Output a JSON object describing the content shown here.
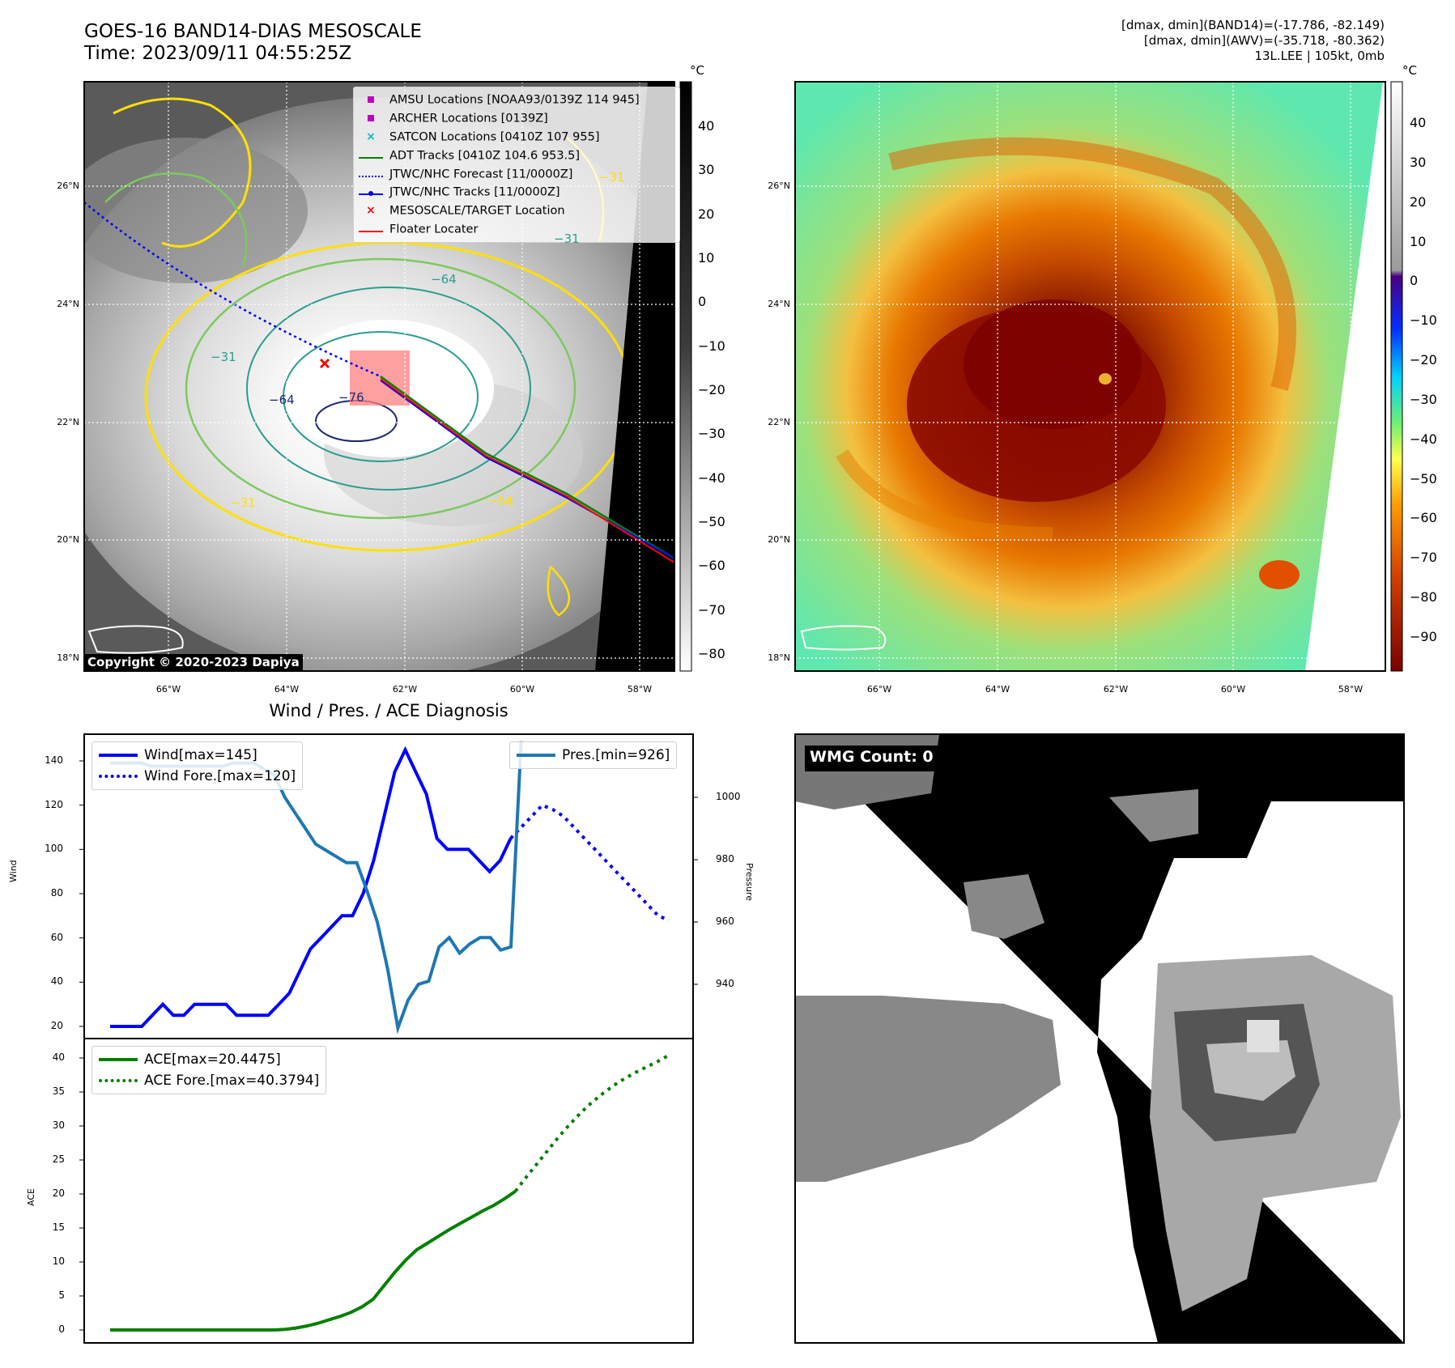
{
  "header": {
    "title_line1": "GOES-16 BAND14-DIAS MESOSCALE",
    "title_line2": "Time: 2023/09/11 04:55:25Z",
    "info_line1": "[dmax, dmin](BAND14)=(-17.786, -82.149)",
    "info_line2": "[dmax, dmin](AWV)=(-35.718, -80.362)",
    "info_line3": "13L.LEE | 105kt, 0mb"
  },
  "map_left": {
    "lat_labels": [
      "26°N",
      "24°N",
      "22°N",
      "20°N",
      "18°N"
    ],
    "lon_labels": [
      "66°W",
      "64°W",
      "62°W",
      "60°W",
      "58°W"
    ],
    "copyright": "Copyright © 2020-2023 Dapiya",
    "colorbar_unit": "°C",
    "colorbar_ticks": [
      "40",
      "30",
      "20",
      "10",
      "0",
      "−10",
      "−20",
      "−30",
      "−40",
      "−50",
      "−60",
      "−70",
      "−80"
    ],
    "contour_labels": [
      "−64",
      "−76",
      "−31",
      "−31",
      "−64",
      "−31",
      "−31",
      "−64"
    ],
    "legend": [
      {
        "label": "AMSU Locations [NOAA93/0139Z 114 945]",
        "color": "#c000c0",
        "marker": "square"
      },
      {
        "label": "ARCHER Locations [0139Z]",
        "color": "#c000c0",
        "marker": "square"
      },
      {
        "label": "SATCON Locations [0410Z 107 955]",
        "color": "#00c0c0",
        "marker": "x"
      },
      {
        "label": "ADT Tracks [0410Z 104.6 953.5]",
        "color": "#008000",
        "marker": "line"
      },
      {
        "label": "JTWC/NHC Forecast [11/0000Z]",
        "color": "#0000ff",
        "marker": "dotted"
      },
      {
        "label": "JTWC/NHC Tracks [11/0000Z]",
        "color": "#0000ff",
        "marker": "line-dot"
      },
      {
        "label": "MESOSCALE/TARGET Location",
        "color": "#ff0000",
        "marker": "x"
      },
      {
        "label": "Floater Locater",
        "color": "#ff0000",
        "marker": "line"
      }
    ]
  },
  "map_right": {
    "lat_labels": [
      "26°N",
      "24°N",
      "22°N",
      "20°N",
      "18°N"
    ],
    "lon_labels": [
      "66°W",
      "64°W",
      "62°W",
      "60°W",
      "58°W"
    ],
    "colorbar_unit": "°C",
    "colorbar_ticks": [
      "40",
      "30",
      "20",
      "10",
      "0",
      "−10",
      "−20",
      "−30",
      "−40",
      "−50",
      "−60",
      "−70",
      "−80",
      "−90"
    ]
  },
  "diagnosis": {
    "title": "Wind / Pres. / ACE Diagnosis",
    "wind_ylabel": "Wind",
    "pres_ylabel": "Pressure",
    "ace_ylabel": "ACE",
    "wind_legend": [
      "Wind[max=145]",
      "Wind Fore.[max=120]"
    ],
    "pres_legend": [
      "Pres.[min=926]"
    ],
    "ace_legend": [
      "ACE[max=20.4475]",
      "ACE Fore.[max=40.3794]"
    ],
    "wind_ticks": [
      "140",
      "120",
      "100",
      "80",
      "60",
      "40",
      "20"
    ],
    "pres_ticks": [
      "1000",
      "980",
      "960",
      "940"
    ],
    "ace_ticks": [
      "40",
      "35",
      "30",
      "25",
      "20",
      "15",
      "10",
      "5",
      "0"
    ]
  },
  "wmg": {
    "label": "WMG Count: 0"
  },
  "colors": {
    "wind": "#0000ff",
    "pressure": "#1f77b4",
    "ace": "#008000",
    "track_red": "#ff0000",
    "contour_yellow": "#ffe000",
    "contour_green": "#7dc95e",
    "contour_teal": "#2a9d8f",
    "contour_navy": "#1c2a6e"
  },
  "chart_data": [
    {
      "type": "line",
      "title": "",
      "ylabel": "Wind",
      "ylim": [
        15,
        150
      ],
      "series": [
        {
          "name": "Wind[max=145]",
          "style": "solid",
          "color": "#0000ff",
          "values": [
            20,
            20,
            20,
            20,
            25,
            30,
            25,
            25,
            30,
            30,
            30,
            30,
            25,
            25,
            25,
            25,
            30,
            35,
            45,
            55,
            60,
            65,
            70,
            70,
            80,
            95,
            115,
            135,
            145,
            135,
            125,
            105,
            100,
            100,
            100,
            95,
            90,
            95,
            105
          ]
        },
        {
          "name": "Wind Fore.[max=120]",
          "style": "dotted",
          "color": "#0000ff",
          "values": [
            105,
            110,
            115,
            120,
            118,
            115,
            110,
            105,
            100,
            95,
            90,
            85,
            80,
            75,
            70,
            68
          ]
        }
      ]
    },
    {
      "type": "line",
      "title": "",
      "ylabel": "Pressure",
      "ylim": [
        925,
        1015
      ],
      "series": [
        {
          "name": "Pres.[min=926]",
          "style": "solid",
          "color": "#1f77b4",
          "values": [
            1011,
            1011,
            1011,
            1011,
            1010,
            1010,
            1010,
            1010,
            1010,
            1010,
            1010,
            1010,
            1011,
            1011,
            1011,
            1009,
            1007,
            1000,
            995,
            990,
            985,
            983,
            981,
            979,
            979,
            970,
            960,
            945,
            926,
            935,
            940,
            941,
            952,
            955,
            950,
            953,
            955,
            955,
            951,
            952,
            1018
          ]
        }
      ]
    },
    {
      "type": "line",
      "title": "",
      "ylabel": "ACE",
      "ylim": [
        -2,
        42
      ],
      "series": [
        {
          "name": "ACE[max=20.4475]",
          "style": "solid",
          "color": "#008000",
          "values": [
            0,
            0,
            0,
            0,
            0,
            0,
            0,
            0,
            0,
            0,
            0,
            0,
            0,
            0,
            0,
            0,
            0.1,
            0.3,
            0.6,
            1.0,
            1.5,
            2.0,
            2.6,
            3.4,
            4.5,
            6.5,
            8.5,
            10.3,
            11.8,
            12.8,
            13.8,
            14.8,
            15.7,
            16.6,
            17.5,
            18.3,
            19.3,
            20.4
          ]
        },
        {
          "name": "ACE Fore.[max=40.3794]",
          "style": "dotted",
          "color": "#008000",
          "values": [
            20.4,
            22.5,
            24.5,
            26.5,
            28.5,
            30.3,
            32.0,
            33.5,
            34.8,
            36.0,
            37.0,
            37.9,
            38.7,
            39.5,
            40.4
          ]
        }
      ]
    }
  ]
}
